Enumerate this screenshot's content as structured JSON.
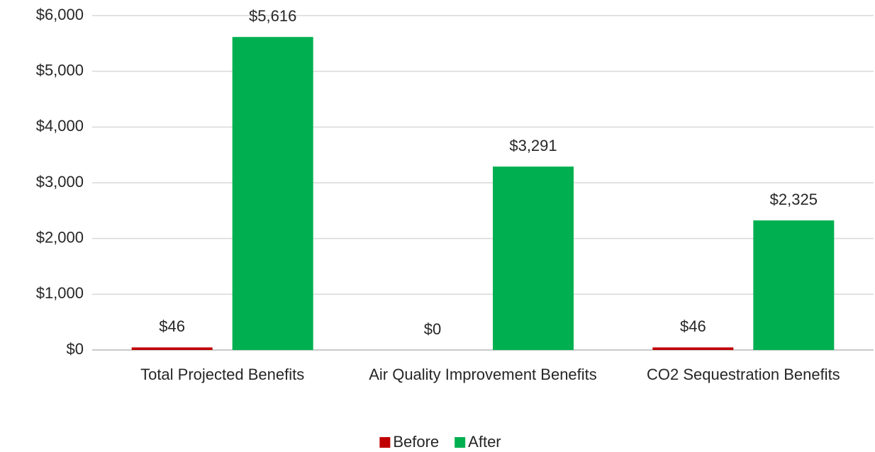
{
  "chart_data": {
    "type": "bar",
    "categories": [
      "Total Projected Benefits",
      "Air Quality Improvement Benefits",
      "CO2 Sequestration Benefits"
    ],
    "series": [
      {
        "name": "Before",
        "color": "#c00000",
        "values": [
          46,
          0,
          46
        ],
        "value_labels": [
          "$46",
          "$0",
          "$46"
        ]
      },
      {
        "name": "After",
        "color": "#00b050",
        "values": [
          5616,
          3291,
          2325
        ],
        "value_labels": [
          "$5,616",
          "$3,291",
          "$2,325"
        ]
      }
    ],
    "ylim": [
      0,
      6000
    ],
    "yticks": [
      {
        "value": 0,
        "label": "$0"
      },
      {
        "value": 1000,
        "label": "$1,000"
      },
      {
        "value": 2000,
        "label": "$2,000"
      },
      {
        "value": 3000,
        "label": "$3,000"
      },
      {
        "value": 4000,
        "label": "$4,000"
      },
      {
        "value": 5000,
        "label": "$5,000"
      },
      {
        "value": 6000,
        "label": "$6,000"
      }
    ],
    "grid": true,
    "legend": "bottom"
  }
}
